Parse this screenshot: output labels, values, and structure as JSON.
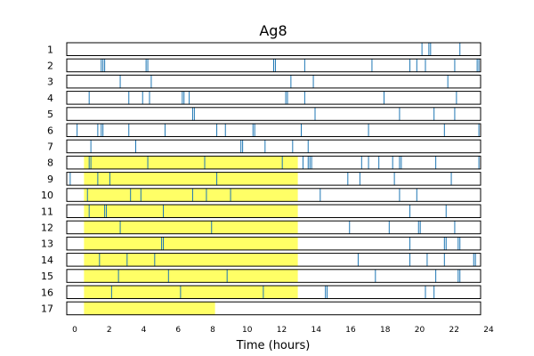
{
  "chart_data": {
    "type": "raster",
    "title": "Ag8",
    "xlabel": "Time (hours)",
    "ylabel": "",
    "xlim": [
      0,
      24
    ],
    "xticks": [
      0,
      2,
      4,
      6,
      8,
      10,
      12,
      14,
      16,
      18,
      20,
      22,
      24
    ],
    "colors": {
      "event": "#1f77b4",
      "highlight": "#ffff66",
      "frame": "#000000"
    },
    "rows": [
      {
        "label": "1",
        "highlight": null,
        "events": [
          20.6,
          21.0,
          21.1,
          22.8
        ]
      },
      {
        "label": "2",
        "highlight": null,
        "events": [
          2.0,
          2.1,
          2.2,
          4.6,
          4.7,
          12.0,
          12.1,
          13.8,
          17.7,
          19.9,
          20.3,
          20.8,
          22.5,
          23.8,
          23.9
        ]
      },
      {
        "label": "3",
        "highlight": null,
        "events": [
          3.1,
          4.9,
          13.0,
          14.3,
          22.1
        ]
      },
      {
        "label": "4",
        "highlight": null,
        "events": [
          1.3,
          3.6,
          4.4,
          4.8,
          6.7,
          6.8,
          7.1,
          12.7,
          12.8,
          13.8,
          18.4,
          22.6
        ]
      },
      {
        "label": "5",
        "highlight": null,
        "events": [
          7.3,
          7.4,
          14.4,
          19.3,
          21.3,
          22.5
        ]
      },
      {
        "label": "6",
        "highlight": null,
        "events": [
          0.6,
          1.8,
          2.0,
          2.1,
          3.6,
          5.7,
          8.7,
          9.2,
          10.8,
          10.9,
          13.6,
          17.5,
          21.9,
          23.9
        ]
      },
      {
        "label": "7",
        "highlight": null,
        "events": [
          1.4,
          4.0,
          10.1,
          10.2,
          11.5,
          13.1,
          14.0
        ]
      },
      {
        "label": "8",
        "highlight": [
          1.0,
          13.4
        ],
        "events": [
          1.3,
          1.4,
          4.7,
          8.0,
          12.5,
          13.7,
          14.0,
          14.1,
          14.2,
          17.1,
          17.5,
          18.1,
          18.9,
          19.3,
          19.4,
          21.4,
          23.9
        ]
      },
      {
        "label": "9",
        "highlight": [
          1.0,
          13.4
        ],
        "events": [
          0.2,
          1.8,
          2.5,
          8.7,
          16.3,
          17.0,
          19.0,
          22.3
        ]
      },
      {
        "label": "10",
        "highlight": [
          1.0,
          13.4
        ],
        "events": [
          1.2,
          3.7,
          4.3,
          7.3,
          8.1,
          9.5,
          14.7,
          19.3,
          20.3
        ]
      },
      {
        "label": "11",
        "highlight": [
          1.0,
          13.4
        ],
        "events": [
          1.3,
          2.2,
          2.3,
          5.6,
          19.9,
          22.0
        ]
      },
      {
        "label": "12",
        "highlight": [
          1.0,
          13.4
        ],
        "events": [
          3.1,
          8.4,
          16.4,
          18.7,
          20.4,
          20.5,
          22.5
        ]
      },
      {
        "label": "13",
        "highlight": [
          1.0,
          13.4
        ],
        "events": [
          5.5,
          5.6,
          19.9,
          21.9,
          22.0,
          22.7,
          22.8
        ]
      },
      {
        "label": "14",
        "highlight": [
          1.0,
          13.4
        ],
        "events": [
          1.9,
          3.5,
          5.1,
          16.9,
          19.9,
          20.9,
          21.9,
          23.6,
          23.7
        ]
      },
      {
        "label": "15",
        "highlight": [
          1.0,
          13.4
        ],
        "events": [
          3.0,
          5.9,
          9.3,
          17.9,
          21.4,
          22.7,
          22.8
        ]
      },
      {
        "label": "16",
        "highlight": [
          1.0,
          13.4
        ],
        "events": [
          2.6,
          6.6,
          11.4,
          15.0,
          15.1,
          20.8,
          21.3
        ]
      },
      {
        "label": "17",
        "highlight": [
          1.0,
          8.6
        ],
        "events": []
      }
    ]
  }
}
